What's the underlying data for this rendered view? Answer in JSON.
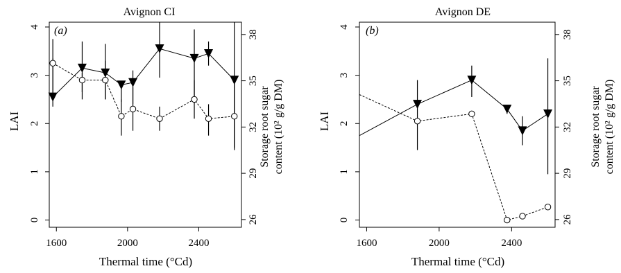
{
  "chart_data": [
    {
      "type": "line",
      "panel_label": "(a)",
      "title": "Avignon CI",
      "xlabel": "Thermal time (°Cd)",
      "ylabel": "LAI",
      "ylabel_right_1": "Storage root sugar",
      "ylabel_right_2": "content (10² g/g DM)",
      "xlim": [
        1560,
        2640
      ],
      "ylim": [
        -0.15,
        4.1
      ],
      "ylim_right": [
        25.5,
        38.8
      ],
      "xticks": [
        "1600",
        "2000",
        "2400"
      ],
      "xtick_values": [
        1600,
        2000,
        2400
      ],
      "yticks": [
        "0",
        "1",
        "2",
        "3",
        "4"
      ],
      "ytick_values": [
        0,
        1,
        2,
        3,
        4
      ],
      "yticks_right": [
        "26",
        "29",
        "32",
        "35",
        "38"
      ],
      "ytick_values_right": [
        26,
        29,
        32,
        35,
        38
      ],
      "series": [
        {
          "axis": "left",
          "marker": "triangle-down",
          "linestyle": "solid",
          "x": [
            1580,
            1745,
            1875,
            1965,
            2030,
            2180,
            2375,
            2455,
            2600
          ],
          "y": [
            2.55,
            3.15,
            3.05,
            2.8,
            2.85,
            3.55,
            3.35,
            3.45,
            2.9
          ],
          "err_low": [
            2.35,
            2.65,
            2.5,
            2.45,
            2.4,
            2.95,
            2.5,
            3.2,
            1.5
          ],
          "err_high": [
            3.35,
            3.7,
            3.65,
            2.85,
            3.1,
            4.1,
            3.95,
            3.7,
            4.1
          ]
        },
        {
          "axis": "left",
          "marker": "circle-open",
          "linestyle": "dashed",
          "x": [
            1580,
            1745,
            1875,
            1965,
            2030,
            2180,
            2375,
            2455,
            2600
          ],
          "y": [
            3.25,
            2.9,
            2.9,
            2.15,
            2.3,
            2.1,
            2.5,
            2.1,
            2.15
          ],
          "err_low": [
            2.6,
            2.5,
            2.5,
            1.75,
            1.85,
            1.85,
            2.1,
            1.75,
            1.45
          ],
          "err_high": [
            3.75,
            3.05,
            3.3,
            2.5,
            2.75,
            2.35,
            2.9,
            2.4,
            2.85
          ]
        }
      ]
    },
    {
      "type": "line",
      "panel_label": "(b)",
      "title": "Avignon DE",
      "xlabel": "Thermal time (°Cd)",
      "ylabel": "LAI",
      "ylabel_right_1": "Storage root sugar",
      "ylabel_right_2": "content (10² g/g DM)",
      "xlim": [
        1560,
        2640
      ],
      "ylim": [
        -0.15,
        4.1
      ],
      "ylim_right": [
        25.5,
        38.8
      ],
      "xticks": [
        "1600",
        "2000",
        "2400"
      ],
      "xtick_values": [
        1600,
        2000,
        2400
      ],
      "yticks": [
        "0",
        "1",
        "2",
        "3",
        "4"
      ],
      "ytick_values": [
        0,
        1,
        2,
        3,
        4
      ],
      "yticks_right": [
        "26",
        "29",
        "32",
        "35",
        "38"
      ],
      "ytick_values_right": [
        26,
        29,
        32,
        35,
        38
      ],
      "series": [
        {
          "axis": "left",
          "marker": "triangle-down",
          "linestyle": "solid",
          "x": [
            1560,
            1880,
            2180,
            2375,
            2460,
            2600
          ],
          "y": [
            1.75,
            2.4,
            2.9,
            2.3,
            1.85,
            2.2
          ],
          "show_marker": [
            false,
            true,
            true,
            true,
            true,
            true
          ],
          "err_low": [
            null,
            1.45,
            2.55,
            2.2,
            1.55,
            0.95
          ],
          "err_high": [
            null,
            2.9,
            3.2,
            2.35,
            2.15,
            3.35
          ]
        },
        {
          "axis": "left",
          "marker": "circle-open",
          "linestyle": "dashed",
          "x": [
            1560,
            1880,
            2180,
            2375,
            2460,
            2600
          ],
          "y": [
            2.6,
            2.05,
            2.2,
            0.0,
            0.08,
            0.27
          ],
          "show_marker": [
            false,
            true,
            true,
            true,
            true,
            true
          ],
          "err_low": [
            null,
            null,
            null,
            null,
            null,
            null
          ],
          "err_high": [
            null,
            null,
            null,
            null,
            null,
            null
          ]
        }
      ]
    }
  ]
}
